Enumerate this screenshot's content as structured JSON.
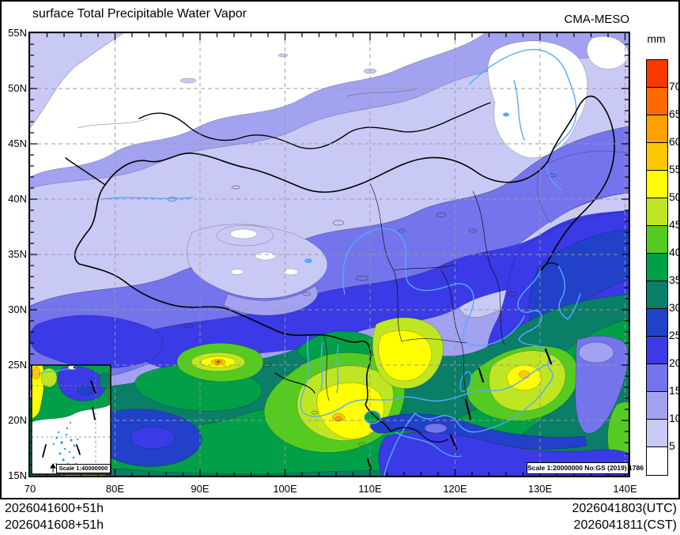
{
  "header": {
    "title": "surface Total Precipitable Water Vapor",
    "model": "CMA-MESO"
  },
  "colorbar": {
    "unit": "mm",
    "boundary_labels": [
      "70",
      "65",
      "60",
      "55",
      "50",
      "45",
      "40",
      "35",
      "30",
      "25",
      "20",
      "15",
      "10",
      "5"
    ],
    "colors_top_to_bottom": [
      "#f93800",
      "#ff6a00",
      "#ffa000",
      "#ffc800",
      "#ffff00",
      "#bfe622",
      "#55cb21",
      "#009f48",
      "#0b7e68",
      "#2041c8",
      "#3a3ae6",
      "#7474ec",
      "#a2a2f0",
      "#c9c9f6",
      "#ffffff"
    ]
  },
  "axes": {
    "x_tick_labels": [
      "70",
      "80E",
      "90E",
      "100E",
      "110E",
      "120E",
      "130E",
      "140E"
    ],
    "y_tick_labels": [
      "55N",
      "50N",
      "45N",
      "40N",
      "35N",
      "30N",
      "25N",
      "20N",
      "15N"
    ]
  },
  "map_labels": {
    "inset_scale": "Scale 1:40000000",
    "main_scale_note": "Scale 1:20000000 No:GS (2019) 1786"
  },
  "footer": {
    "left_line1": "2026041600+51h",
    "left_line2": "2026041608+51h",
    "right_line1": "2026041803(UTC)",
    "right_line2": "2026041811(CST)"
  },
  "chart_data": {
    "type": "heatmap",
    "title": "surface Total Precipitable Water Vapor",
    "model": "CMA-MESO",
    "unit": "mm",
    "lon_range": [
      70,
      140
    ],
    "lat_range": [
      15,
      55
    ],
    "lon_tick_labels": [
      "70",
      "80E",
      "90E",
      "100E",
      "110E",
      "120E",
      "130E",
      "140E"
    ],
    "lat_tick_labels": [
      "55N",
      "50N",
      "45N",
      "40N",
      "35N",
      "30N",
      "25N",
      "20N",
      "15N"
    ],
    "contour_levels_mm": [
      5,
      10,
      15,
      20,
      25,
      30,
      35,
      40,
      45,
      50,
      55,
      60,
      65,
      70
    ],
    "palette_low_to_high": [
      "#ffffff",
      "#c9c9f6",
      "#a2a2f0",
      "#7474ec",
      "#3a3ae6",
      "#2041c8",
      "#0b7e68",
      "#009f48",
      "#55cb21",
      "#bfe622",
      "#ffff00",
      "#ffc800",
      "#ffa000",
      "#ff6a00",
      "#f93800"
    ],
    "legend_position": "right",
    "grid": "dashed 10-deg lon / 5-deg lat",
    "annotations": [
      "Scale 1:40000000",
      "Scale 1:20000000 No:GS (2019) 1786"
    ],
    "times": [
      "2026041600+51h",
      "2026041608+51h",
      "2026041803(UTC)",
      "2026041811(CST)"
    ]
  }
}
